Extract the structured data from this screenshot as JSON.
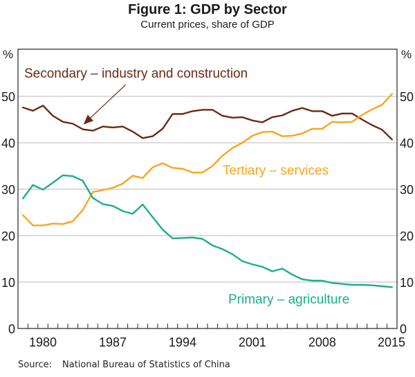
{
  "chart_data": {
    "type": "line",
    "title": "Figure 1: GDP by Sector",
    "subtitle": "Current prices, share of GDP",
    "xlabel": "",
    "ylabel": "%",
    "ylabel_right": "%",
    "ylim": [
      0,
      55
    ],
    "yticks": [
      0,
      10,
      20,
      30,
      40,
      50
    ],
    "xlim": [
      1978,
      2015
    ],
    "xticks": [
      1980,
      1987,
      1994,
      2001,
      2008,
      2015
    ],
    "grid": true,
    "x": [
      1978,
      1979,
      1980,
      1981,
      1982,
      1983,
      1984,
      1985,
      1986,
      1987,
      1988,
      1989,
      1990,
      1991,
      1992,
      1993,
      1994,
      1995,
      1996,
      1997,
      1998,
      1999,
      2000,
      2001,
      2002,
      2003,
      2004,
      2005,
      2006,
      2007,
      2008,
      2009,
      2010,
      2011,
      2012,
      2013,
      2014,
      2015
    ],
    "series": [
      {
        "name": "Secondary – industry and construction",
        "color": "#6b2a14",
        "values": [
          47.6,
          46.9,
          48.0,
          45.8,
          44.5,
          44.1,
          42.9,
          42.6,
          43.5,
          43.3,
          43.5,
          42.4,
          41.0,
          41.4,
          43.0,
          46.2,
          46.2,
          46.8,
          47.1,
          47.1,
          45.8,
          45.4,
          45.5,
          44.8,
          44.4,
          45.5,
          45.9,
          46.9,
          47.5,
          46.8,
          46.8,
          45.8,
          46.3,
          46.3,
          45.0,
          43.8,
          42.8,
          40.7
        ]
      },
      {
        "name": "Tertiary – services",
        "color": "#f9a51a",
        "values": [
          24.4,
          22.2,
          22.2,
          22.6,
          22.5,
          23.1,
          25.5,
          29.4,
          29.8,
          30.3,
          31.2,
          32.9,
          32.4,
          34.7,
          35.6,
          34.6,
          34.4,
          33.6,
          33.6,
          35.0,
          37.2,
          38.9,
          40.0,
          41.5,
          42.3,
          42.4,
          41.4,
          41.5,
          42.0,
          43.0,
          43.0,
          44.5,
          44.4,
          44.5,
          46.0,
          47.2,
          48.2,
          50.5
        ]
      },
      {
        "name": "Primary – agriculture",
        "color": "#1baf88",
        "values": [
          28.0,
          30.9,
          29.9,
          31.4,
          33.0,
          32.8,
          31.8,
          28.1,
          26.8,
          26.4,
          25.3,
          24.7,
          26.7,
          24.0,
          21.3,
          19.4,
          19.5,
          19.6,
          19.3,
          17.9,
          17.1,
          16.0,
          14.5,
          13.8,
          13.3,
          12.3,
          12.9,
          11.6,
          10.6,
          10.3,
          10.3,
          9.8,
          9.6,
          9.4,
          9.4,
          9.3,
          9.1,
          8.9
        ]
      }
    ],
    "annotations": [
      {
        "text": "Secondary – industry and construction",
        "series": 0,
        "arrow_to_year": 1984
      },
      {
        "text": "Tertiary – services",
        "series": 1
      },
      {
        "text": "Primary – agriculture",
        "series": 2
      }
    ],
    "source_label": "Source:",
    "source_text": "National Bureau of Statistics of China"
  }
}
